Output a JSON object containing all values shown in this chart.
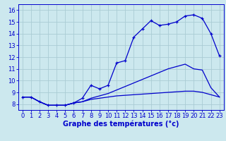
{
  "xlabel": "Graphe des températures (°c)",
  "bg_color": "#cce8ee",
  "grid_color": "#aaccd4",
  "line_color": "#0000cc",
  "xlim": [
    -0.5,
    23.5
  ],
  "ylim": [
    7.5,
    16.5
  ],
  "xticks": [
    0,
    1,
    2,
    3,
    4,
    5,
    6,
    7,
    8,
    9,
    10,
    11,
    12,
    13,
    14,
    15,
    16,
    17,
    18,
    19,
    20,
    21,
    22,
    23
  ],
  "yticks": [
    8,
    9,
    10,
    11,
    12,
    13,
    14,
    15,
    16
  ],
  "line1_x": [
    0,
    1,
    2,
    3,
    4,
    5,
    6,
    7,
    8,
    9,
    10,
    11,
    12,
    13,
    14,
    15,
    16,
    17,
    18,
    19,
    20,
    21,
    22,
    23
  ],
  "line1_y": [
    8.6,
    8.6,
    8.2,
    7.9,
    7.9,
    7.9,
    8.1,
    8.5,
    9.6,
    9.3,
    9.6,
    11.5,
    11.7,
    13.7,
    14.4,
    15.1,
    14.7,
    14.8,
    15.0,
    15.5,
    15.6,
    15.3,
    14.0,
    12.1
  ],
  "line2_x": [
    0,
    1,
    2,
    3,
    4,
    5,
    6,
    7,
    8,
    9,
    10,
    11,
    12,
    13,
    14,
    15,
    16,
    17,
    18,
    19,
    20,
    21,
    22,
    23
  ],
  "line2_y": [
    8.6,
    8.6,
    8.2,
    7.9,
    7.9,
    7.9,
    8.1,
    8.2,
    8.5,
    8.7,
    8.9,
    9.2,
    9.5,
    9.8,
    10.1,
    10.4,
    10.7,
    11.0,
    11.2,
    11.4,
    11.0,
    10.9,
    9.4,
    8.6
  ],
  "line3_x": [
    0,
    1,
    2,
    3,
    4,
    5,
    6,
    7,
    8,
    9,
    10,
    11,
    12,
    13,
    14,
    15,
    16,
    17,
    18,
    19,
    20,
    21,
    22,
    23
  ],
  "line3_y": [
    8.6,
    8.6,
    8.2,
    7.9,
    7.9,
    7.9,
    8.1,
    8.2,
    8.4,
    8.5,
    8.6,
    8.7,
    8.75,
    8.8,
    8.85,
    8.9,
    8.95,
    9.0,
    9.05,
    9.1,
    9.1,
    9.0,
    8.8,
    8.6
  ],
  "tick_fontsize": 6.0,
  "label_fontsize": 7.0
}
